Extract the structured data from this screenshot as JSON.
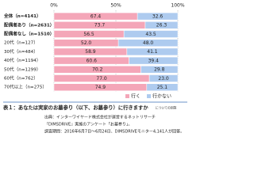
{
  "chart_data": {
    "type": "stacked-barh",
    "categories": [
      "全体（n=4141）",
      "配偶者あり（n=2631）",
      "配偶者なし（n=1510）",
      "20代（n=127）",
      "30代（n=484）",
      "40代（n=1194）",
      "50代（n=1299）",
      "60代（n=762）",
      "70代以上（n=275）"
    ],
    "series": [
      {
        "name": "行く",
        "color": "#f4a6b8",
        "values": [
          67.4,
          73.7,
          56.5,
          52.0,
          58.9,
          60.6,
          70.2,
          77.0,
          74.9
        ],
        "value_labels": [
          "67.4",
          "73.7",
          "56.5",
          "52.0",
          "58.9",
          "60.6",
          "70.2",
          "77.0",
          "74.9"
        ]
      },
      {
        "name": "行かない",
        "color": "#aecbef",
        "values": [
          32.6,
          26.3,
          43.5,
          48.0,
          41.1,
          39.4,
          29.8,
          23.0,
          25.1
        ],
        "value_labels": [
          "32.6",
          "26.3",
          "43.5",
          "48.0",
          "41.1",
          "39.4",
          "29.8",
          "23.0",
          "25.1"
        ]
      }
    ],
    "xlim": [
      0,
      100
    ],
    "xticks": [
      {
        "value": 0,
        "label": "0%"
      },
      {
        "value": 50,
        "label": "50%"
      },
      {
        "value": 100,
        "label": "100%"
      }
    ],
    "grid": true,
    "legend": "bottom-right",
    "caption": "表１：あなたは実家のお墓参り（以下、お墓参り）に行きますか",
    "caption_note": "についての回答",
    "source": [
      "出典：インターワイヤード株式会社が運営するネットリサーチ",
      "『DIMSDRIVE』実施のアンケート「お墓参り」。",
      "調査期間：2016年6月7日～6月24日、DIMSDRIVEモニター4,141人が回答。"
    ]
  }
}
